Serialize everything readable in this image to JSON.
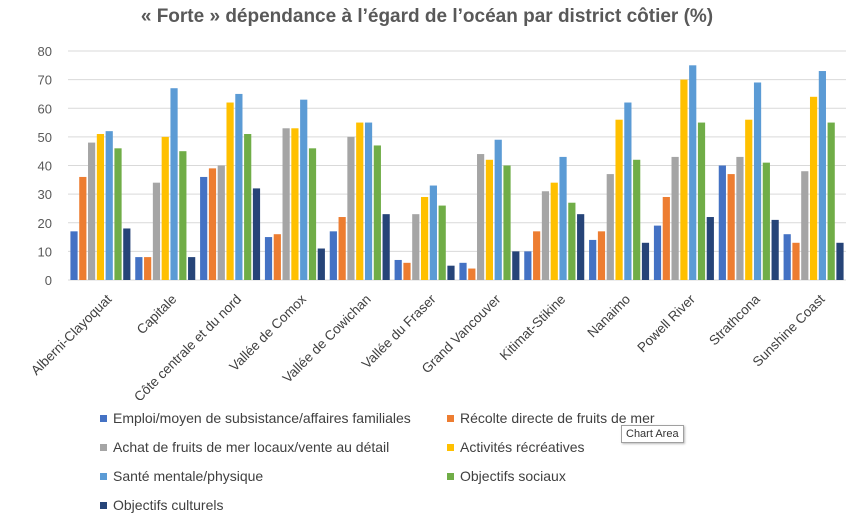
{
  "chart_data": {
    "type": "bar",
    "title": "« Forte » dépendance à l’égard de l’océan par district côtier (%)",
    "xlabel": "",
    "ylabel": "",
    "ylim": [
      0,
      80
    ],
    "yticks": [
      0,
      10,
      20,
      30,
      40,
      50,
      60,
      70,
      80
    ],
    "grid": true,
    "legend_position": "bottom",
    "categories": [
      "Alberni-Clayoquat",
      "Capitale",
      "Côte centrale et du nord",
      "Vallée de Comox",
      "Vallée de Cowichan",
      "Vallée du Fraser",
      "Grand Vancouver",
      "Kitimat-Stikine",
      "Nanaimo",
      "Powell River",
      "Strathcona",
      "Sunshine Coast"
    ],
    "series": [
      {
        "name": "Emploi/moyen de subsistance/affaires familiales",
        "color": "#4472C4",
        "values": [
          17,
          8,
          36,
          15,
          17,
          7,
          6,
          10,
          14,
          19,
          40,
          16
        ]
      },
      {
        "name": "Récolte directe de fruits de mer",
        "color": "#ED7D31",
        "values": [
          36,
          8,
          39,
          16,
          22,
          6,
          4,
          17,
          17,
          29,
          37,
          13
        ]
      },
      {
        "name": "Achat de fruits de mer locaux/vente au détail",
        "color": "#A5A5A5",
        "values": [
          48,
          34,
          40,
          53,
          50,
          23,
          44,
          31,
          37,
          43,
          43,
          38
        ]
      },
      {
        "name": "Activités récréatives",
        "color": "#FFC000",
        "values": [
          51,
          50,
          62,
          53,
          55,
          29,
          42,
          34,
          56,
          70,
          56,
          64
        ]
      },
      {
        "name": "Santé mentale/physique",
        "color": "#5B9BD5",
        "values": [
          52,
          67,
          65,
          63,
          55,
          33,
          49,
          43,
          62,
          75,
          69,
          73
        ]
      },
      {
        "name": "Objectifs sociaux",
        "color": "#70AD47",
        "values": [
          46,
          45,
          51,
          46,
          47,
          26,
          40,
          27,
          42,
          55,
          41,
          55
        ]
      },
      {
        "name": "Objectifs culturels",
        "color": "#264478",
        "values": [
          18,
          8,
          32,
          11,
          23,
          5,
          10,
          23,
          13,
          22,
          21,
          13
        ]
      }
    ]
  },
  "tooltip": "Chart Area"
}
